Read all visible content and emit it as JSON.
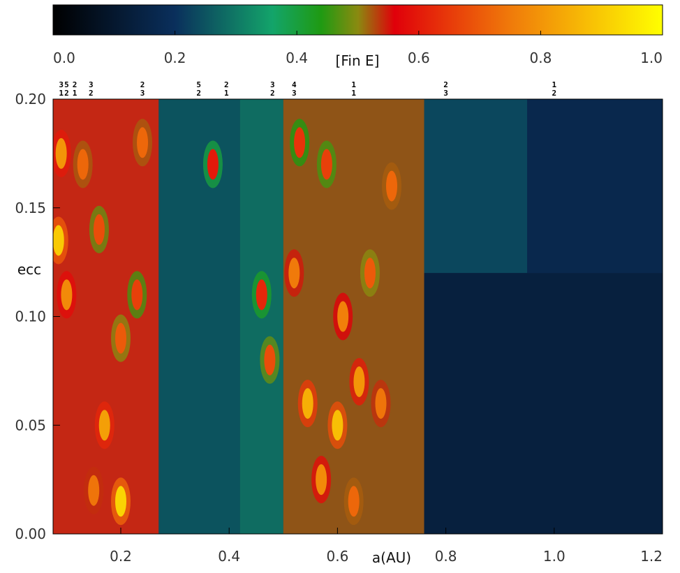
{
  "chart_data": {
    "type": "heatmap",
    "xlabel": "a(AU)",
    "ylabel": "ecc",
    "xlim": [
      0.075,
      1.2
    ],
    "ylim": [
      0.0,
      0.2
    ],
    "x_ticks": [
      "0.2",
      "0.4",
      "0.6",
      "0.8",
      "1.0",
      "1.2"
    ],
    "y_ticks": [
      "0.00",
      "0.05",
      "0.10",
      "0.15",
      "0.20"
    ],
    "colorbar": {
      "label": "[Fin E]",
      "range": [
        0.0,
        1.0
      ],
      "ticks": [
        "0.0",
        "0.2",
        "0.4",
        "0.6",
        "0.8",
        "1.0"
      ],
      "stops": [
        {
          "v": 0.0,
          "color": "#000000"
        },
        {
          "v": 0.2,
          "color": "#0a2f5c"
        },
        {
          "v": 0.36,
          "color": "#13a46a"
        },
        {
          "v": 0.44,
          "color": "#1f9a12"
        },
        {
          "v": 0.5,
          "color": "#8a8a10"
        },
        {
          "v": 0.56,
          "color": "#e0000a"
        },
        {
          "v": 0.75,
          "color": "#f07a0a"
        },
        {
          "v": 1.0,
          "color": "#ffff00"
        }
      ]
    },
    "resonances": [
      {
        "a": 0.09,
        "top": "3",
        "bottom": "1"
      },
      {
        "a": 0.1,
        "top": "5",
        "bottom": "2"
      },
      {
        "a": 0.115,
        "top": "2",
        "bottom": "1"
      },
      {
        "a": 0.145,
        "top": "3",
        "bottom": "2"
      },
      {
        "a": 0.24,
        "top": "2",
        "bottom": "3"
      },
      {
        "a": 0.344,
        "top": "5",
        "bottom": "2"
      },
      {
        "a": 0.395,
        "top": "2",
        "bottom": "1"
      },
      {
        "a": 0.48,
        "top": "3",
        "bottom": "2"
      },
      {
        "a": 0.52,
        "top": "4",
        "bottom": "3"
      },
      {
        "a": 0.63,
        "top": "1",
        "bottom": "1"
      },
      {
        "a": 0.8,
        "top": "2",
        "bottom": "3"
      },
      {
        "a": 1.0,
        "top": "1",
        "bottom": "2"
      }
    ],
    "regions": [
      {
        "a_min": 0.075,
        "a_max": 0.27,
        "e_min": 0.0,
        "e_max": 0.2,
        "level": 0.62
      },
      {
        "a_min": 0.27,
        "a_max": 0.42,
        "e_min": 0.0,
        "e_max": 0.2,
        "level": 0.26
      },
      {
        "a_min": 0.42,
        "a_max": 0.5,
        "e_min": 0.0,
        "e_max": 0.2,
        "level": 0.3
      },
      {
        "a_min": 0.5,
        "a_max": 0.76,
        "e_min": 0.0,
        "e_max": 0.2,
        "level": 0.52
      },
      {
        "a_min": 0.76,
        "a_max": 0.95,
        "e_min": 0.12,
        "e_max": 0.2,
        "level": 0.24
      },
      {
        "a_min": 0.76,
        "a_max": 1.2,
        "e_min": 0.0,
        "e_max": 0.12,
        "level": 0.13
      },
      {
        "a_min": 0.95,
        "a_max": 1.2,
        "e_min": 0.12,
        "e_max": 0.2,
        "level": 0.17
      }
    ],
    "hotspots": [
      {
        "a": 0.085,
        "e": 0.135,
        "v": 0.9
      },
      {
        "a": 0.09,
        "e": 0.175,
        "v": 0.8
      },
      {
        "a": 0.1,
        "e": 0.11,
        "v": 0.78
      },
      {
        "a": 0.13,
        "e": 0.17,
        "v": 0.72
      },
      {
        "a": 0.16,
        "e": 0.14,
        "v": 0.68
      },
      {
        "a": 0.17,
        "e": 0.05,
        "v": 0.82
      },
      {
        "a": 0.2,
        "e": 0.015,
        "v": 0.92
      },
      {
        "a": 0.2,
        "e": 0.09,
        "v": 0.7
      },
      {
        "a": 0.24,
        "e": 0.18,
        "v": 0.72
      },
      {
        "a": 0.23,
        "e": 0.11,
        "v": 0.66
      },
      {
        "a": 0.15,
        "e": 0.02,
        "v": 0.74
      },
      {
        "a": 0.37,
        "e": 0.17,
        "v": 0.6
      },
      {
        "a": 0.46,
        "e": 0.11,
        "v": 0.62
      },
      {
        "a": 0.475,
        "e": 0.08,
        "v": 0.68
      },
      {
        "a": 0.52,
        "e": 0.12,
        "v": 0.75
      },
      {
        "a": 0.53,
        "e": 0.18,
        "v": 0.64
      },
      {
        "a": 0.545,
        "e": 0.06,
        "v": 0.85
      },
      {
        "a": 0.57,
        "e": 0.025,
        "v": 0.78
      },
      {
        "a": 0.6,
        "e": 0.05,
        "v": 0.88
      },
      {
        "a": 0.61,
        "e": 0.1,
        "v": 0.76
      },
      {
        "a": 0.64,
        "e": 0.07,
        "v": 0.8
      },
      {
        "a": 0.66,
        "e": 0.12,
        "v": 0.7
      },
      {
        "a": 0.68,
        "e": 0.06,
        "v": 0.74
      },
      {
        "a": 0.7,
        "e": 0.16,
        "v": 0.72
      },
      {
        "a": 0.58,
        "e": 0.17,
        "v": 0.66
      },
      {
        "a": 0.63,
        "e": 0.015,
        "v": 0.72
      }
    ]
  }
}
